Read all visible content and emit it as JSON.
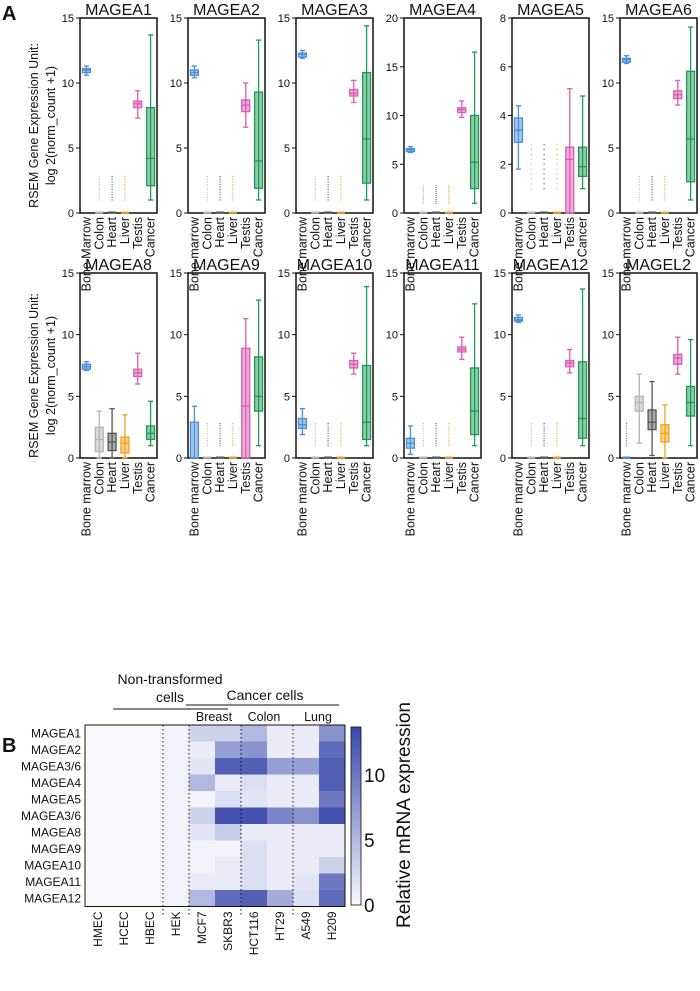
{
  "panel_labels": {
    "a": "A",
    "b": "B"
  },
  "colors": {
    "Bone marrow": "#4a8fd6",
    "Colon": "#b5b5b5",
    "Heart": "#555555",
    "Liver": "#f2a31b",
    "Testis": "#d95cb5",
    "Cancer": "#1e9a55",
    "heat_low": "#f8f8fd",
    "heat_high": "#3949ab"
  },
  "chart_data": [
    {
      "type": "box",
      "ylabel": [
        "RSEM Gene Expression Unit:",
        "log 2(norm_count +1)"
      ],
      "categories_note": "box stats are [min, q1, median, q3, max]",
      "panels": [
        {
          "title": "MAGEA1",
          "ylim": [
            0,
            15
          ],
          "yticks": [
            0,
            5,
            10,
            15
          ],
          "categories": [
            "Bone Marrow",
            "Colon",
            "Heart",
            "Liver",
            "Testis",
            "Cancer"
          ],
          "boxes": [
            [
              10.6,
              10.8,
              11,
              11.1,
              11.3
            ],
            [
              0,
              0,
              0,
              0,
              0
            ],
            [
              0,
              0,
              0,
              0,
              0
            ],
            [
              0,
              0,
              0,
              0,
              0
            ],
            [
              7.3,
              8.1,
              8.4,
              8.6,
              9.4
            ],
            [
              1,
              2.1,
              4.2,
              8.1,
              13.7
            ]
          ]
        },
        {
          "title": "MAGEA2",
          "ylim": [
            0,
            15
          ],
          "yticks": [
            0,
            5,
            10,
            15
          ],
          "categories": [
            "Bone marrow",
            "Colon",
            "Heart",
            "Liver",
            "Testis",
            "Cancer"
          ],
          "boxes": [
            [
              10.4,
              10.6,
              10.8,
              11,
              11.3
            ],
            [
              0,
              0,
              0,
              0,
              0
            ],
            [
              0,
              0,
              0,
              0,
              0
            ],
            [
              0,
              0,
              0,
              0,
              0
            ],
            [
              6.6,
              7.8,
              8.3,
              8.7,
              10
            ],
            [
              1,
              1.9,
              4,
              9.3,
              13.3
            ]
          ]
        },
        {
          "title": "MAGEA3",
          "ylim": [
            0,
            15
          ],
          "yticks": [
            0,
            5,
            10,
            15
          ],
          "categories": [
            "Bone marrow",
            "Colon",
            "Heart",
            "Liver",
            "Testis",
            "Cancer"
          ],
          "boxes": [
            [
              11.9,
              12,
              12.2,
              12.3,
              12.5
            ],
            [
              0,
              0,
              0,
              0,
              0
            ],
            [
              0,
              0,
              0,
              0,
              0
            ],
            [
              0,
              0,
              0,
              0,
              0
            ],
            [
              8.5,
              9,
              9.2,
              9.5,
              10.2
            ],
            [
              1,
              2.3,
              5.7,
              10.8,
              14.4
            ]
          ]
        },
        {
          "title": "MAGEA4",
          "ylim": [
            0,
            20
          ],
          "yticks": [
            0,
            5,
            10,
            15,
            20
          ],
          "categories": [
            "Bone marrow",
            "Colon",
            "Heart",
            "Liver",
            "Testis",
            "Cancer"
          ],
          "boxes": [
            [
              6.2,
              6.3,
              6.5,
              6.6,
              6.8
            ],
            [
              0,
              0,
              0,
              0,
              0
            ],
            [
              0,
              0,
              0,
              0,
              0
            ],
            [
              0,
              0,
              0,
              0,
              0
            ],
            [
              9.8,
              10.3,
              10.6,
              10.8,
              11.5
            ],
            [
              1,
              2.5,
              5.2,
              10,
              16.5
            ]
          ]
        },
        {
          "title": "MAGEA5",
          "ylim": [
            0,
            8
          ],
          "yticks": [
            0,
            2,
            4,
            6,
            8
          ],
          "categories": [
            "Bone marrow",
            "Colon",
            "Heart",
            "Liver",
            "Testis",
            "Cancer"
          ],
          "boxes": [
            [
              1.8,
              2.9,
              3.4,
              3.9,
              4.4
            ],
            [
              0,
              0,
              0,
              0,
              0
            ],
            [
              0,
              0,
              0,
              0,
              0
            ],
            [
              0,
              0,
              0,
              0,
              0
            ],
            [
              0,
              0,
              2.2,
              2.7,
              5.1
            ],
            [
              1,
              1.5,
              1.9,
              2.7,
              4.8
            ]
          ]
        },
        {
          "title": "MAGEA6",
          "ylim": [
            0,
            15
          ],
          "yticks": [
            0,
            5,
            10,
            15
          ],
          "categories": [
            "Bone marrow",
            "Colon",
            "Heart",
            "Liver",
            "Testis",
            "Cancer"
          ],
          "boxes": [
            [
              11.5,
              11.6,
              11.8,
              11.9,
              12.1
            ],
            [
              0,
              0,
              0,
              0,
              0
            ],
            [
              0,
              0,
              0,
              0,
              0
            ],
            [
              0,
              0,
              0,
              0,
              0
            ],
            [
              8.3,
              8.8,
              9.1,
              9.4,
              10.2
            ],
            [
              1,
              2.4,
              5.7,
              10.9,
              14.3
            ]
          ]
        },
        {
          "title": "MAGEA8",
          "ylim": [
            0,
            15
          ],
          "yticks": [
            0,
            5,
            10,
            15
          ],
          "categories": [
            "Bone marrow",
            "Colon",
            "Heart",
            "Liver",
            "Testis",
            "Cancer"
          ],
          "boxes": [
            [
              7.1,
              7.2,
              7.4,
              7.6,
              7.8
            ],
            [
              0,
              0.5,
              1.5,
              2.5,
              3.8
            ],
            [
              0,
              0.6,
              1.3,
              2,
              4
            ],
            [
              0,
              0.4,
              1.2,
              1.7,
              3.5
            ],
            [
              6,
              6.6,
              6.9,
              7.2,
              8.5
            ],
            [
              1,
              1.5,
              2,
              2.6,
              4.6
            ]
          ]
        },
        {
          "title": "MAGEA9",
          "ylim": [
            0,
            15
          ],
          "yticks": [
            0,
            5,
            10,
            15
          ],
          "categories": [
            "Bone marrow",
            "Colon",
            "Heart",
            "Liver",
            "Testis",
            "Cancer"
          ],
          "boxes": [
            [
              0,
              0,
              0,
              2.9,
              4.2
            ],
            [
              0,
              0,
              0,
              0,
              0
            ],
            [
              0,
              0,
              0,
              0,
              0
            ],
            [
              0,
              0,
              0,
              0,
              0
            ],
            [
              0,
              0,
              4.2,
              8.9,
              11.3
            ],
            [
              1,
              3.8,
              5,
              8.2,
              12.8
            ]
          ]
        },
        {
          "title": "MAGEA10",
          "ylim": [
            0,
            15
          ],
          "yticks": [
            0,
            5,
            10,
            15
          ],
          "categories": [
            "Bone marrow",
            "Colon",
            "Heart",
            "Liver",
            "Testis",
            "Cancer"
          ],
          "boxes": [
            [
              1.9,
              2.4,
              2.7,
              3.2,
              4
            ],
            [
              0,
              0,
              0,
              0,
              0
            ],
            [
              0,
              0,
              0,
              0,
              0
            ],
            [
              0,
              0,
              0,
              0,
              0
            ],
            [
              6.8,
              7.3,
              7.6,
              7.9,
              8.5
            ],
            [
              1,
              1.5,
              2.9,
              7.5,
              13.9
            ]
          ]
        },
        {
          "title": "MAGEA11",
          "ylim": [
            0,
            15
          ],
          "yticks": [
            0,
            5,
            10,
            15
          ],
          "categories": [
            "Bone marrow",
            "Colon",
            "Heart",
            "Liver",
            "Testis",
            "Cancer"
          ],
          "boxes": [
            [
              0.3,
              0.8,
              1.2,
              1.6,
              2.6
            ],
            [
              0,
              0,
              0,
              0,
              0
            ],
            [
              0,
              0,
              0,
              0,
              0
            ],
            [
              0,
              0,
              0,
              0,
              0
            ],
            [
              8,
              8.6,
              8.8,
              9,
              9.8
            ],
            [
              1,
              1.9,
              3.8,
              7.3,
              12.5
            ]
          ]
        },
        {
          "title": "MAGEA12",
          "ylim": [
            0,
            15
          ],
          "yticks": [
            0,
            5,
            10,
            15
          ],
          "categories": [
            "Bone marrow",
            "Colon",
            "Heart",
            "Liver",
            "Testis",
            "Cancer"
          ],
          "boxes": [
            [
              11,
              11.1,
              11.2,
              11.4,
              11.6
            ],
            [
              0,
              0,
              0,
              0,
              0
            ],
            [
              0,
              0,
              0,
              0,
              0
            ],
            [
              0,
              0,
              0,
              0,
              0
            ],
            [
              6.9,
              7.4,
              7.7,
              7.9,
              8.8
            ],
            [
              1,
              1.6,
              3.2,
              7.8,
              13.7
            ]
          ]
        },
        {
          "title": "MAGEL2",
          "ylim": [
            0,
            15
          ],
          "yticks": [
            0,
            5,
            10,
            15
          ],
          "categories": [
            "Bone marrow",
            "Colon",
            "Heart",
            "Liver",
            "Testis",
            "Cancer"
          ],
          "boxes": [
            [
              0,
              0,
              0,
              0,
              0
            ],
            [
              1.2,
              3.8,
              4.5,
              5,
              6.8
            ],
            [
              0.2,
              2.3,
              2.9,
              3.9,
              6.2
            ],
            [
              0,
              1.3,
              2,
              2.7,
              4.3
            ],
            [
              6.8,
              7.6,
              8.1,
              8.4,
              9.8
            ],
            [
              1,
              3.4,
              4.5,
              5.8,
              9.6
            ]
          ]
        }
      ]
    },
    {
      "type": "heatmap",
      "group_labels": {
        "non_transformed": [
          "Non-transformed",
          "cells"
        ],
        "cancer": "Cancer cells",
        "subgroups": [
          "Breast",
          "Colon",
          "Lung"
        ]
      },
      "columns": [
        "HMEC",
        "HCEC",
        "HBEC",
        "HEK",
        "MCF7",
        "SKBR3",
        "HCT116",
        "HT29",
        "A549",
        "H209"
      ],
      "rows": [
        "MAGEA1",
        "MAGEA2",
        "MAGEA3/6",
        "MAGEA4",
        "MAGEA5",
        "MAGEA3/6",
        "MAGEA8",
        "MAGEA9",
        "MAGEA10",
        "MAGEA11",
        "MAGEA12"
      ],
      "values": [
        [
          0,
          0,
          0,
          0.5,
          3,
          3,
          5,
          1,
          1,
          8
        ],
        [
          0,
          0,
          0,
          0.5,
          1,
          7,
          8,
          1,
          1,
          11
        ],
        [
          0,
          0,
          0,
          0.5,
          1.5,
          12,
          12,
          7,
          7,
          12
        ],
        [
          0,
          0,
          0,
          0.5,
          5,
          1,
          2,
          1,
          1,
          12
        ],
        [
          0,
          0,
          0,
          0.5,
          0.5,
          2,
          1.5,
          1,
          1,
          10
        ],
        [
          0,
          0,
          0,
          0.5,
          3,
          13,
          13,
          9,
          8,
          13
        ],
        [
          0,
          0,
          0,
          0.5,
          1.5,
          3.5,
          1,
          1,
          1,
          1
        ],
        [
          0,
          0,
          0,
          0.5,
          0.5,
          0.5,
          2,
          1,
          1,
          1
        ],
        [
          0,
          0,
          0,
          0.5,
          0.5,
          1,
          2,
          1,
          1,
          3
        ],
        [
          0,
          0,
          0,
          0.5,
          1,
          1,
          2,
          1,
          1.5,
          10
        ],
        [
          0,
          0,
          0,
          0.5,
          5,
          11,
          12,
          6,
          2,
          11
        ]
      ],
      "colorbar": {
        "label": "Relative mRNA expression",
        "range": [
          0,
          13.7
        ],
        "ticks": [
          0,
          5,
          10
        ]
      }
    }
  ]
}
